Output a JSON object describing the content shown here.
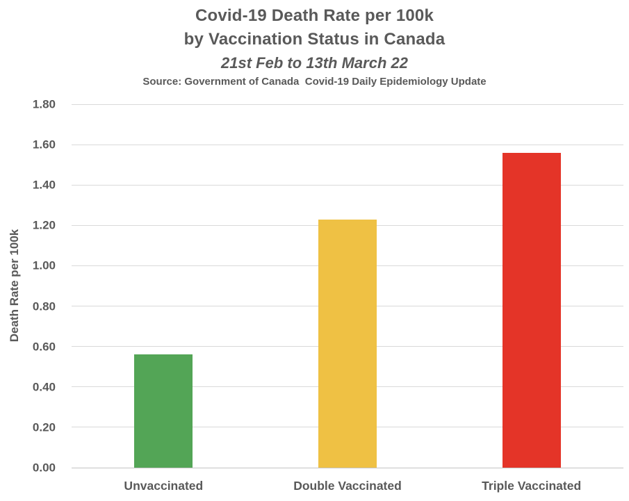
{
  "header": {
    "title_line1": "Covid-19 Death Rate per 100k",
    "title_line2": "by Vaccination Status in Canada",
    "subtitle": "21st Feb to 13th March 22",
    "source": "Source: Government of Canada  Covid-19 Daily Epidemiology Update"
  },
  "chart_data": {
    "type": "bar",
    "title": "Covid-19 Death Rate per 100k by Vaccination Status in Canada",
    "subtitle": "21st Feb to 13th March 22",
    "source": "Source: Government of Canada  Covid-19 Daily Epidemiology Update",
    "categories": [
      "Unvaccinated",
      "Double Vaccinated",
      "Triple Vaccinated"
    ],
    "values": [
      0.56,
      1.23,
      1.56
    ],
    "bar_colors": [
      "#53a556",
      "#efc144",
      "#e43428"
    ],
    "xlabel": "",
    "ylabel": "Death Rate per 100k",
    "ylim": [
      0,
      1.8
    ],
    "ytick_step": 0.2,
    "ytick_labels": [
      "0.00",
      "0.20",
      "0.40",
      "0.60",
      "0.80",
      "1.00",
      "1.20",
      "1.40",
      "1.60",
      "1.80"
    ],
    "grid": true,
    "legend": "none",
    "gridline_color": "#d9d9d9",
    "axis_line_color": "#c3c3c3",
    "text_color": "#595959"
  }
}
